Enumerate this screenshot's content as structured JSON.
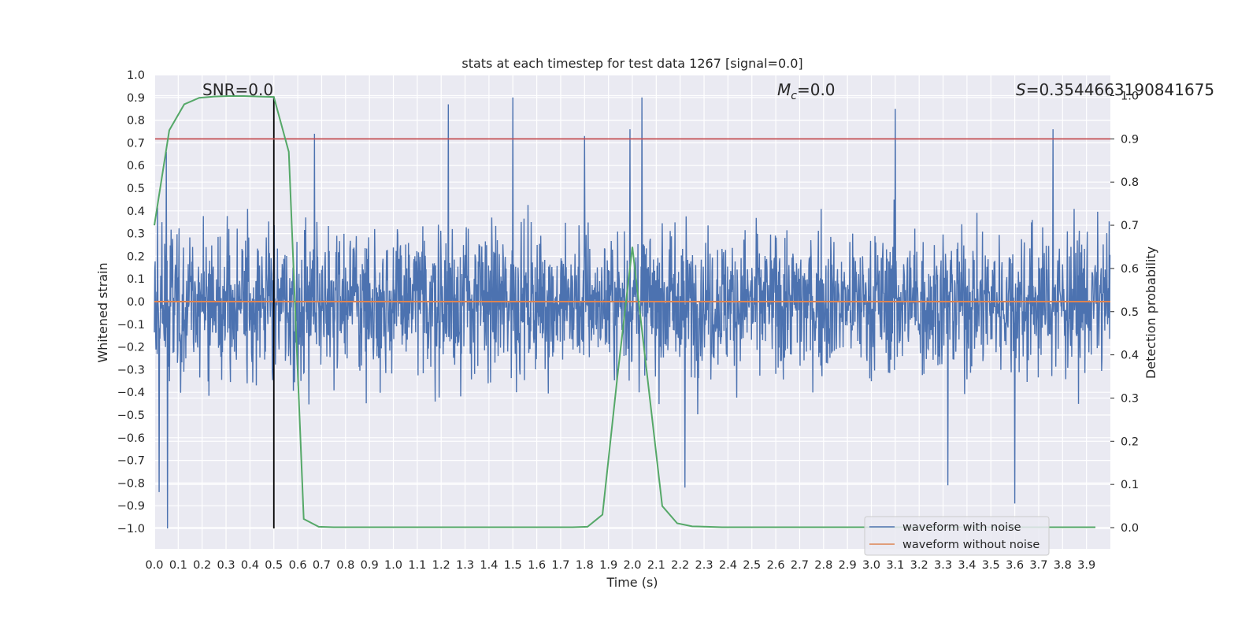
{
  "chart_data": {
    "type": "line",
    "title": "stats at each timestep for test data 1267 [signal=0.0]",
    "xlabel": "Time (s)",
    "ylabel": "Whitened strain",
    "y2label": "Detection probability",
    "xlim": [
      0.0,
      4.0
    ],
    "ylim": [
      -1.09,
      1.0
    ],
    "y2lim": [
      -0.05,
      1.0
    ],
    "x_ticks": [
      "0.0",
      "0.1",
      "0.2",
      "0.3",
      "0.4",
      "0.5",
      "0.6",
      "0.7",
      "0.8",
      "0.9",
      "1.0",
      "1.1",
      "1.2",
      "1.3",
      "1.4",
      "1.5",
      "1.6",
      "1.7",
      "1.8",
      "1.9",
      "2.0",
      "2.1",
      "2.2",
      "2.3",
      "2.4",
      "2.5",
      "2.6",
      "2.7",
      "2.8",
      "2.9",
      "3.0",
      "3.1",
      "3.2",
      "3.3",
      "3.4",
      "3.5",
      "3.6",
      "3.7",
      "3.8",
      "3.9"
    ],
    "y_ticks": [
      "1.0",
      "0.9",
      "0.8",
      "0.7",
      "0.6",
      "0.5",
      "0.4",
      "0.3",
      "0.2",
      "0.1",
      "0.0",
      "−0.1",
      "−0.2",
      "−0.3",
      "−0.4",
      "−0.5",
      "−0.6",
      "−0.7",
      "−0.8",
      "−0.9",
      "−1.0"
    ],
    "y2_ticks": [
      "1.0",
      "0.9",
      "0.8",
      "0.7",
      "0.6",
      "0.5",
      "0.4",
      "0.3",
      "0.2",
      "0.1",
      "0.0"
    ],
    "grid": true,
    "legend_position": "lower-right",
    "annotations": {
      "snr": "SNR=0.0",
      "mc_symbol": "M",
      "mc_sub": "c",
      "mc_value": "=0.0",
      "s_symbol": "S",
      "s_value": "=0.3544663190841675"
    },
    "series": [
      {
        "name": "waveform with noise",
        "color": "#4c72b0",
        "description_points": "random noise, amplitude mostly within ±0.6",
        "peaks": [
          {
            "x": 0.02,
            "y": -0.84
          },
          {
            "x": 0.055,
            "y": -1.0
          },
          {
            "x": 0.05,
            "y": 0.66
          },
          {
            "x": 0.67,
            "y": 0.74
          },
          {
            "x": 1.23,
            "y": 0.87
          },
          {
            "x": 1.5,
            "y": 0.9
          },
          {
            "x": 1.8,
            "y": 0.73
          },
          {
            "x": 1.99,
            "y": 0.76
          },
          {
            "x": 2.04,
            "y": 0.9
          },
          {
            "x": 2.22,
            "y": -0.82
          },
          {
            "x": 3.1,
            "y": 0.85
          },
          {
            "x": 3.32,
            "y": -0.81
          },
          {
            "x": 3.6,
            "y": -0.89
          },
          {
            "x": 3.76,
            "y": 0.76
          }
        ]
      },
      {
        "name": "waveform without noise",
        "color": "#dd8452",
        "x": [
          0.0,
          4.0
        ],
        "y": [
          0.0,
          0.0
        ]
      },
      {
        "name": "detection probability",
        "color": "#55a868",
        "axis": "right",
        "x": [
          0.0,
          0.0625,
          0.125,
          0.1875,
          0.25,
          0.3125,
          0.375,
          0.4375,
          0.5,
          0.5625,
          0.625,
          0.6875,
          0.75,
          0.8125,
          0.875,
          0.9375,
          1.0,
          1.0625,
          1.125,
          1.1875,
          1.25,
          1.3125,
          1.375,
          1.4375,
          1.5,
          1.5625,
          1.625,
          1.6875,
          1.75,
          1.8125,
          1.875,
          1.9375,
          2.0,
          2.0625,
          2.125,
          2.1875,
          2.25,
          2.3125,
          2.375,
          2.4375,
          2.5,
          2.5625,
          2.625,
          2.6875,
          2.75,
          2.8125,
          2.875,
          2.9375,
          3.0,
          3.0625,
          3.125,
          3.1875,
          3.25,
          3.3125,
          3.375,
          3.4375,
          3.5,
          3.5625,
          3.625,
          3.6875,
          3.75,
          3.8125,
          3.875,
          3.9375
        ],
        "y": [
          0.7,
          0.92,
          0.98,
          0.995,
          0.998,
          0.999,
          0.999,
          0.998,
          0.997,
          0.87,
          0.02,
          0.002,
          0.001,
          0.001,
          0.001,
          0.001,
          0.001,
          0.001,
          0.001,
          0.001,
          0.001,
          0.001,
          0.001,
          0.001,
          0.001,
          0.001,
          0.001,
          0.001,
          0.001,
          0.002,
          0.03,
          0.35,
          0.65,
          0.35,
          0.05,
          0.01,
          0.003,
          0.002,
          0.001,
          0.001,
          0.001,
          0.001,
          0.001,
          0.001,
          0.001,
          0.001,
          0.001,
          0.001,
          0.001,
          0.001,
          0.001,
          0.001,
          0.001,
          0.001,
          0.001,
          0.001,
          0.001,
          0.001,
          0.001,
          0.001,
          0.001,
          0.001,
          0.001,
          0.001
        ]
      }
    ],
    "reference_lines": [
      {
        "type": "vertical",
        "x": 0.5,
        "y_from": -1.0,
        "y_to": 0.9,
        "color": "#000000"
      },
      {
        "type": "horizontal",
        "axis": "right",
        "y": 0.9,
        "color": "#c44e52"
      }
    ]
  },
  "colors": {
    "axes_bg": "#eaeaf2",
    "grid": "#ffffff",
    "text": "#262626"
  }
}
